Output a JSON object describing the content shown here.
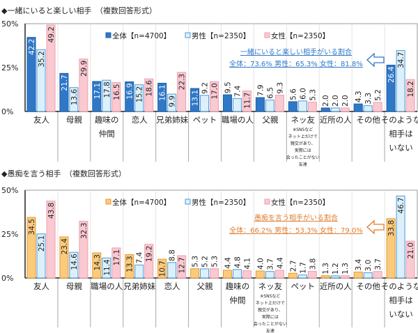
{
  "chart_data": [
    {
      "type": "bar",
      "title": "◆一緒にいると楽しい相手　（複数回答形式）",
      "ylim": [
        0,
        50
      ],
      "yticks": [
        "0%",
        "25%",
        "50%"
      ],
      "legend_position": "top",
      "categories": [
        {
          "lines": [
            "友人"
          ]
        },
        {
          "lines": [
            "母親"
          ]
        },
        {
          "lines": [
            "趣味の",
            "仲間"
          ]
        },
        {
          "lines": [
            "恋人"
          ]
        },
        {
          "lines": [
            "兄弟姉妹"
          ]
        },
        {
          "lines": [
            "ペット"
          ]
        },
        {
          "lines": [
            "職場の人"
          ]
        },
        {
          "lines": [
            "父親"
          ]
        },
        {
          "lines": [
            "ネッ友"
          ],
          "note": [
            "※SNSなど",
            "ネット上だけで",
            "親交があり、",
            "実際には",
            "会ったことがない",
            "友達"
          ]
        },
        {
          "lines": [
            "近所の人"
          ]
        },
        {
          "lines": [
            "その他"
          ]
        },
        {
          "lines": [
            "そのような",
            "相手は",
            "いない"
          ]
        }
      ],
      "series": [
        {
          "name": "全体【n=4700】",
          "color": "#2f78c8",
          "border": "#1f5fa8",
          "label_color": "#ffffff",
          "values": [
            42.2,
            21.7,
            17.1,
            16.9,
            16.1,
            13.1,
            9.5,
            7.9,
            5.6,
            2.0,
            4.3,
            26.4
          ]
        },
        {
          "name": "男性【n=2350】",
          "color": "#dcf0fb",
          "border": "#4a9ad6",
          "label_color": "#222222",
          "values": [
            35.2,
            13.6,
            17.8,
            15.2,
            9.9,
            9.2,
            7.4,
            6.5,
            6.0,
            2.0,
            3.3,
            34.7
          ]
        },
        {
          "name": "女性【n=2350】",
          "color": "#fac9d2",
          "border": "#ec9fae",
          "label_color": "#222222",
          "values": [
            49.2,
            29.9,
            16.5,
            18.6,
            22.3,
            17.0,
            11.7,
            9.3,
            5.3,
            2.0,
            5.2,
            18.2
          ]
        }
      ],
      "annotation": {
        "heading": "一緒にいると楽しい相手がいる割合",
        "summary": "全体：73.6%  男性：65.3%  女性：81.8%",
        "color": "#2f78c8"
      }
    },
    {
      "type": "bar",
      "title": "◆愚痴を言う相手　（複数回答形式）",
      "ylim": [
        0,
        50
      ],
      "yticks": [
        "0%",
        "25%",
        "50%"
      ],
      "legend_position": "top",
      "categories": [
        {
          "lines": [
            "友人"
          ]
        },
        {
          "lines": [
            "母親"
          ]
        },
        {
          "lines": [
            "職場の人"
          ]
        },
        {
          "lines": [
            "兄弟姉妹"
          ]
        },
        {
          "lines": [
            "恋人"
          ]
        },
        {
          "lines": [
            "父親"
          ]
        },
        {
          "lines": [
            "趣味の",
            "仲間"
          ]
        },
        {
          "lines": [
            "ネッ友"
          ],
          "note": [
            "※SNSなど",
            "ネット上だけで",
            "親交があり、",
            "実際には",
            "会ったことがない",
            "友達"
          ]
        },
        {
          "lines": [
            "ペット"
          ]
        },
        {
          "lines": [
            "近所の人"
          ]
        },
        {
          "lines": [
            "その他"
          ]
        },
        {
          "lines": [
            "そのような",
            "相手は",
            "いない"
          ]
        }
      ],
      "series": [
        {
          "name": "全体【n=4700】",
          "color": "#fbcb7c",
          "border": "#e39a36",
          "label_color": "#222222",
          "values": [
            34.5,
            23.4,
            14.3,
            13.3,
            10.7,
            5.3,
            4.4,
            4.0,
            2.7,
            1.3,
            3.4,
            33.8
          ]
        },
        {
          "name": "男性【n=2350】",
          "color": "#dcf0fb",
          "border": "#4a9ad6",
          "label_color": "#222222",
          "values": [
            25.1,
            14.6,
            11.4,
            7.4,
            8.8,
            5.2,
            4.8,
            3.7,
            1.7,
            1.2,
            3.0,
            46.7
          ]
        },
        {
          "name": "女性【n=2350】",
          "color": "#fac9d2",
          "border": "#ec9fae",
          "label_color": "#222222",
          "values": [
            43.8,
            32.3,
            17.1,
            19.2,
            12.7,
            5.3,
            4.1,
            4.4,
            3.8,
            1.3,
            3.7,
            21.0
          ]
        }
      ],
      "annotation": {
        "heading": "愚痴を言う相手がいる割合",
        "summary": "全体：66.2%  男性：53.3%  女性：79.0%",
        "color": "#e07c2e"
      }
    }
  ]
}
